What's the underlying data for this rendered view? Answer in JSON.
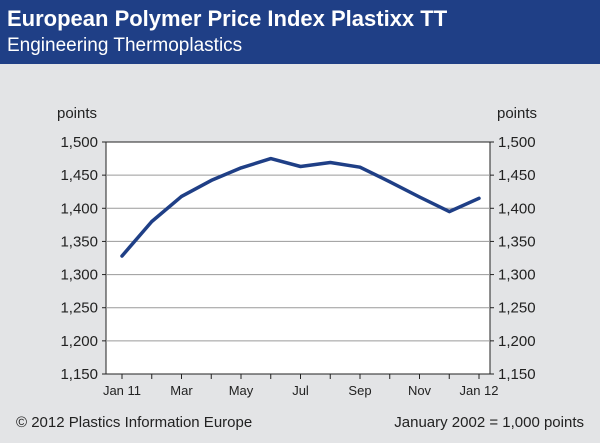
{
  "header": {
    "title": "European Polymer Price Index Plastixx TT",
    "subtitle": "Engineering Thermoplastics"
  },
  "footer": {
    "copyright": "© 2012 Plastics Information Europe",
    "note": "January 2002 = 1,000 points"
  },
  "colors": {
    "header_bg": "#1f3f86",
    "line": "#1f3f86",
    "background": "#e3e4e6",
    "plot_bg": "#ffffff",
    "grid": "#9a9a9a"
  },
  "chart_data": {
    "type": "line",
    "x": [
      "Jan 11",
      "Feb 11",
      "Mar 11",
      "Apr 11",
      "May 11",
      "Jun 11",
      "Jul 11",
      "Aug 11",
      "Sep 11",
      "Oct 11",
      "Nov 11",
      "Dec 11",
      "Jan 12"
    ],
    "x_tick_labels": [
      "Jan 11",
      "Mar",
      "May",
      "Jul",
      "Sep",
      "Nov",
      "Jan 12"
    ],
    "series": [
      {
        "values": [
          1328,
          1380,
          1418,
          1442,
          1461,
          1475,
          1463,
          1469,
          1462,
          1440,
          1417,
          1395,
          1415
        ]
      }
    ],
    "ylabel_left": "points",
    "ylabel_right": "points",
    "yticks": [
      1150,
      1200,
      1250,
      1300,
      1350,
      1400,
      1450,
      1500
    ],
    "ytick_labels": [
      "1,150",
      "1,200",
      "1,250",
      "1,300",
      "1,350",
      "1,400",
      "1,450",
      "1,500"
    ],
    "ylim": [
      1150,
      1500
    ],
    "grid": true
  }
}
